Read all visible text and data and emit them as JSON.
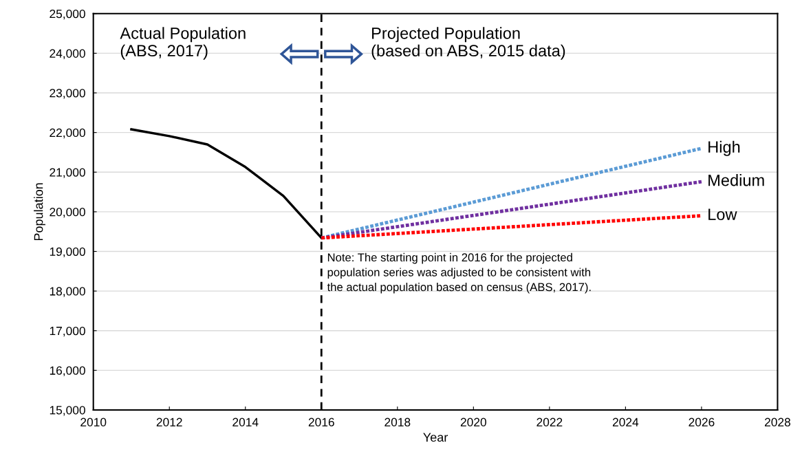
{
  "chart_data": {
    "type": "line",
    "xlabel": "Year",
    "ylabel": "Population",
    "xlim": [
      2010,
      2028
    ],
    "xticks": [
      2010,
      2012,
      2014,
      2016,
      2018,
      2020,
      2022,
      2024,
      2026,
      2028
    ],
    "ylim": [
      15000,
      25000
    ],
    "yticks": [
      {
        "value": 15000,
        "label": "15,000"
      },
      {
        "value": 16000,
        "label": "16,000"
      },
      {
        "value": 17000,
        "label": "17,000"
      },
      {
        "value": 18000,
        "label": "18,000"
      },
      {
        "value": 19000,
        "label": "19,000"
      },
      {
        "value": 20000,
        "label": "20,000"
      },
      {
        "value": 21000,
        "label": "21,000"
      },
      {
        "value": 22000,
        "label": "22,000"
      },
      {
        "value": 23000,
        "label": "23,000"
      },
      {
        "value": 24000,
        "label": "24,000"
      },
      {
        "value": 25000,
        "label": "25,000"
      }
    ],
    "grid": "y",
    "series": [
      {
        "color": "#000000",
        "line_style": "solid",
        "x": [
          2011,
          2012,
          2013,
          2014,
          2015,
          2016
        ],
        "values": [
          22080,
          21910,
          21700,
          21130,
          20400,
          19340
        ]
      },
      {
        "name": "High",
        "color": "#5b9bd5",
        "line_style": "dotted",
        "x": [
          2016,
          2026
        ],
        "values": [
          19340,
          21600
        ]
      },
      {
        "name": "Medium",
        "color": "#7030a0",
        "line_style": "dotted",
        "x": [
          2016,
          2026
        ],
        "values": [
          19340,
          20760
        ]
      },
      {
        "name": "Low",
        "color": "#ff0000",
        "line_style": "dotted",
        "x": [
          2016,
          2026
        ],
        "values": [
          19340,
          19900
        ]
      }
    ],
    "ref_lines": [
      {
        "axis": "x",
        "value": 2016,
        "color": "#000000",
        "line_style": "dashed"
      }
    ],
    "annotations": [
      "Actual Population\n(ABS, 2017)",
      "Projected Population\n(based on ABS, 2015 data)",
      "Note: The starting point in 2016 for the projected\npopulation series was adjusted to be consistent with\nthe actual population based on census (ABS, 2017)."
    ]
  }
}
